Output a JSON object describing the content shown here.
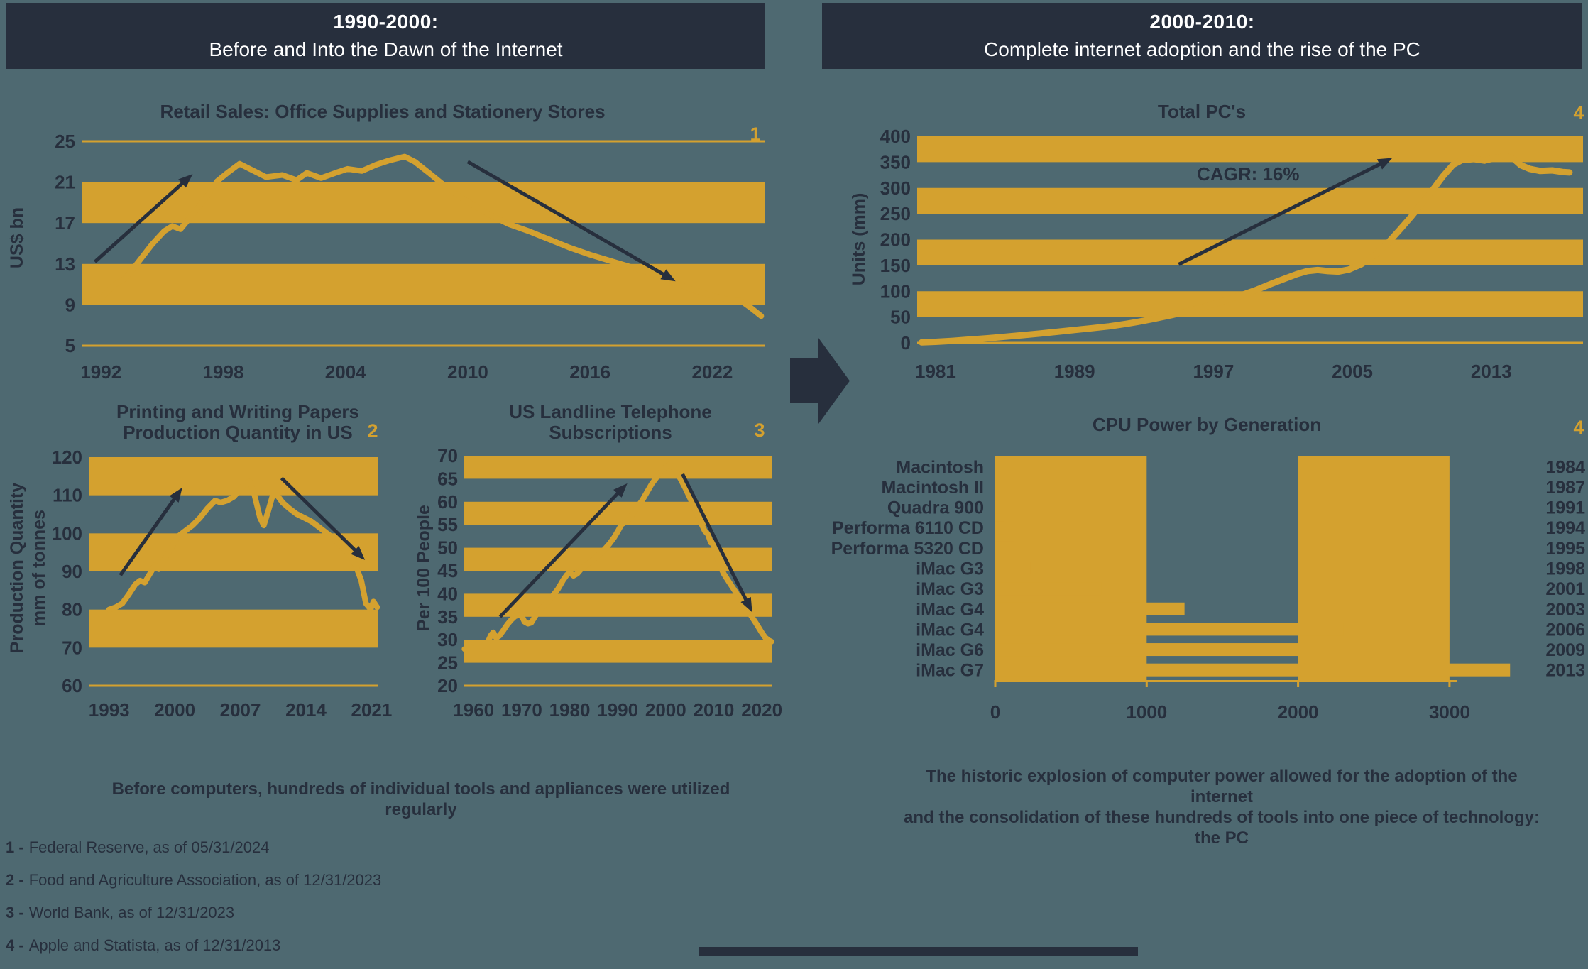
{
  "page": {
    "background": "#4e6971",
    "navy": "#272f3d",
    "gold": "#d4a12f",
    "white": "#ffffff"
  },
  "headers": {
    "left": {
      "era": "1990-2000:",
      "description": "Before and Into the Dawn of the Internet"
    },
    "right": {
      "era": "2000-2010:",
      "description": "Complete internet adoption and the rise of the PC"
    }
  },
  "captions": {
    "left": "Before computers, hundreds of individual tools and appliances were utilized regularly",
    "right_lines": [
      "The historic explosion of computer power allowed for the adoption of the internet",
      "and the consolidation of these hundreds of tools into one piece of technology: the PC"
    ]
  },
  "footnotes": [
    {
      "label": "1 -",
      "text": "Federal Reserve, as of 05/31/2024"
    },
    {
      "label": "2 -",
      "text": "Food and Agriculture Association, as of 12/31/2023"
    },
    {
      "label": "3 -",
      "text": "World Bank, as of 12/31/2023"
    },
    {
      "label": "4 -",
      "text": "Apple and Statista, as of 12/31/2013"
    }
  ],
  "chart_data": {
    "retail_sales": {
      "type": "line",
      "ref": "1",
      "title": "Retail Sales: Office Supplies and Stationery Stores",
      "ylabel": "US$ bn",
      "y_ticks": [
        25,
        21,
        17,
        13,
        9,
        5
      ],
      "x_ticks": [
        1992,
        1998,
        2004,
        2010,
        2016,
        2022
      ],
      "y_range": [
        5,
        25
      ],
      "x_range": [
        1991.05,
        2024.6
      ],
      "bands": [
        [
          17,
          21
        ],
        [
          9,
          13
        ]
      ],
      "edge_lines": [
        25,
        5
      ],
      "series": [
        [
          1991.2,
          9.3
        ],
        [
          1992,
          9.6
        ],
        [
          1992.6,
          10.9
        ],
        [
          1993.2,
          11.6
        ],
        [
          1993.8,
          13.1
        ],
        [
          1994.5,
          14.9
        ],
        [
          1995.1,
          16.2
        ],
        [
          1995.5,
          16.7
        ],
        [
          1995.9,
          16.4
        ],
        [
          1996.6,
          18.1
        ],
        [
          1997.2,
          19.6
        ],
        [
          1997.7,
          21.1
        ],
        [
          1998.2,
          21.9
        ],
        [
          1998.8,
          22.8
        ],
        [
          1999.4,
          22.2
        ],
        [
          2000.1,
          21.5
        ],
        [
          2000.9,
          21.7
        ],
        [
          2001.6,
          21.2
        ],
        [
          2002.1,
          21.9
        ],
        [
          2002.8,
          21.4
        ],
        [
          2003.5,
          21.9
        ],
        [
          2004.1,
          22.3
        ],
        [
          2004.8,
          22.1
        ],
        [
          2005.5,
          22.7
        ],
        [
          2006.1,
          23.1
        ],
        [
          2006.9,
          23.5
        ],
        [
          2007.4,
          23
        ],
        [
          2008.1,
          21.9
        ],
        [
          2008.9,
          20.6
        ],
        [
          2009.6,
          19.6
        ],
        [
          2010.4,
          18.6
        ],
        [
          2011.1,
          17.8
        ],
        [
          2012,
          16.9
        ],
        [
          2013,
          16.2
        ],
        [
          2014,
          15.4
        ],
        [
          2015,
          14.6
        ],
        [
          2016,
          13.9
        ],
        [
          2017,
          13.3
        ],
        [
          2018,
          12.7
        ],
        [
          2019,
          12.1
        ],
        [
          2020,
          11.3
        ],
        [
          2021,
          10.5
        ],
        [
          2022,
          9.9
        ],
        [
          2022.8,
          9.5
        ],
        [
          2023.4,
          9.4
        ],
        [
          2023.9,
          8.7
        ],
        [
          2024.4,
          7.9
        ]
      ],
      "arrows": [
        [
          1991.7,
          13.2,
          1996.5,
          21.8
        ],
        [
          2010,
          23,
          2020.2,
          11.3
        ]
      ]
    },
    "paper_production": {
      "type": "line",
      "ref": "2",
      "title_lines": [
        "Printing and Writing Papers",
        "Production Quantity in US"
      ],
      "ylabel_lines": [
        "Production Quantity",
        "mm of tonnes"
      ],
      "y_ticks": [
        120,
        110,
        100,
        90,
        80,
        70,
        60
      ],
      "x_ticks": [
        1993,
        2000,
        2007,
        2014,
        2021
      ],
      "y_range": [
        60,
        120
      ],
      "x_range": [
        1990.9,
        2021.65
      ],
      "bands": [
        [
          110,
          120
        ],
        [
          90,
          100
        ],
        [
          70,
          80
        ]
      ],
      "edge_lines": [
        60
      ],
      "series": [
        [
          1993,
          80
        ],
        [
          1993.7,
          80.6
        ],
        [
          1994.4,
          81.6
        ],
        [
          1995.1,
          84
        ],
        [
          1995.8,
          86.6
        ],
        [
          1996.3,
          87.6
        ],
        [
          1996.8,
          87.1
        ],
        [
          1997.4,
          89.6
        ],
        [
          1997.9,
          91.6
        ],
        [
          1998.3,
          90.6
        ],
        [
          1998.9,
          93.1
        ],
        [
          1999.6,
          96.1
        ],
        [
          2000.3,
          99.1
        ],
        [
          2001.1,
          100.6
        ],
        [
          2001.9,
          102.1
        ],
        [
          2002.7,
          104.1
        ],
        [
          2003.5,
          106.6
        ],
        [
          2004.3,
          108.6
        ],
        [
          2004.9,
          108.1
        ],
        [
          2005.6,
          108.6
        ],
        [
          2006.3,
          109.6
        ],
        [
          2007,
          111.6
        ],
        [
          2007.5,
          113.1
        ],
        [
          2008,
          113.6
        ],
        [
          2008.5,
          110.1
        ],
        [
          2009.1,
          104.1
        ],
        [
          2009.5,
          102.1
        ],
        [
          2010,
          106.1
        ],
        [
          2010.4,
          109.6
        ],
        [
          2010.9,
          110.1
        ],
        [
          2011.5,
          108.1
        ],
        [
          2012.2,
          106.6
        ],
        [
          2013,
          105.1
        ],
        [
          2013.8,
          104.1
        ],
        [
          2014.6,
          103.1
        ],
        [
          2015.4,
          101.6
        ],
        [
          2016.2,
          100.1
        ],
        [
          2017,
          98.6
        ],
        [
          2017.8,
          96.6
        ],
        [
          2018.6,
          94.6
        ],
        [
          2019.3,
          91.6
        ],
        [
          2019.9,
          87.6
        ],
        [
          2020.4,
          81.6
        ],
        [
          2020.9,
          80.1
        ],
        [
          2021.2,
          82.1
        ],
        [
          2021.6,
          80.6
        ]
      ],
      "arrows": [
        [
          1994.2,
          89,
          2000.8,
          112
        ],
        [
          2011.4,
          114.5,
          2020.3,
          93
        ]
      ]
    },
    "landline": {
      "type": "line",
      "ref": "3",
      "title_lines": [
        "US Landline Telephone",
        "Subscriptions"
      ],
      "ylabel": "Per 100 People",
      "y_ticks": [
        70,
        65,
        60,
        55,
        50,
        45,
        40,
        35,
        30,
        25,
        20
      ],
      "x_ticks": [
        1960,
        1970,
        1980,
        1990,
        2000,
        2010,
        2020
      ],
      "y_range": [
        20,
        70
      ],
      "x_range": [
        1957.9,
        2022.05
      ],
      "bands": [
        [
          65,
          70
        ],
        [
          55,
          60
        ],
        [
          45,
          50
        ],
        [
          35,
          40
        ],
        [
          25,
          30
        ]
      ],
      "edge_lines": [
        20
      ],
      "series": [
        [
          1958.1,
          28
        ],
        [
          1959,
          27.9
        ],
        [
          1960,
          28.1
        ],
        [
          1960.8,
          27.9
        ],
        [
          1961.5,
          28.4
        ],
        [
          1962.3,
          28.9
        ],
        [
          1963,
          29.6
        ],
        [
          1963.6,
          31
        ],
        [
          1964.1,
          31.6
        ],
        [
          1964.7,
          30.4
        ],
        [
          1965.4,
          30.9
        ],
        [
          1966.1,
          31.9
        ],
        [
          1967,
          33.3
        ],
        [
          1967.8,
          34.3
        ],
        [
          1968.6,
          35.1
        ],
        [
          1969.4,
          35.4
        ],
        [
          1970.1,
          35
        ],
        [
          1970.6,
          33.9
        ],
        [
          1971.3,
          33.5
        ],
        [
          1972,
          33.7
        ],
        [
          1972.7,
          34.9
        ],
        [
          1973.4,
          36.1
        ],
        [
          1974.3,
          37.1
        ],
        [
          1975.4,
          38.1
        ],
        [
          1976.5,
          39.6
        ],
        [
          1977.6,
          41.1
        ],
        [
          1978.6,
          42.9
        ],
        [
          1979.4,
          44.1
        ],
        [
          1980.1,
          44.6
        ],
        [
          1980.8,
          43.9
        ],
        [
          1981.6,
          44.4
        ],
        [
          1982.4,
          45.4
        ],
        [
          1983.3,
          46.1
        ],
        [
          1984.3,
          46.9
        ],
        [
          1985.3,
          47.7
        ],
        [
          1986.3,
          48.7
        ],
        [
          1987.3,
          49.7
        ],
        [
          1988.3,
          50.9
        ],
        [
          1989.3,
          52.3
        ],
        [
          1990.1,
          53.7
        ],
        [
          1990.8,
          55.1
        ],
        [
          1991.5,
          55.5
        ],
        [
          1992.3,
          56.1
        ],
        [
          1993.1,
          57.3
        ],
        [
          1994.1,
          58.9
        ],
        [
          1995.1,
          60.3
        ],
        [
          1996.1,
          62.1
        ],
        [
          1997.1,
          63.9
        ],
        [
          1998.1,
          65.3
        ],
        [
          1999.1,
          66.7
        ],
        [
          2000.1,
          67.7
        ],
        [
          2000.8,
          68.1
        ],
        [
          2001.5,
          67.5
        ],
        [
          2002.3,
          66.3
        ],
        [
          2003.1,
          64.9
        ],
        [
          2004.1,
          62.9
        ],
        [
          2005.1,
          60.7
        ],
        [
          2006.1,
          58.3
        ],
        [
          2007.1,
          55.9
        ],
        [
          2008.1,
          53.7
        ],
        [
          2008.8,
          52.9
        ],
        [
          2009.4,
          51.1
        ],
        [
          2009.8,
          51.3
        ],
        [
          2010.4,
          48.9
        ],
        [
          2011.1,
          46.5
        ],
        [
          2012.1,
          44.3
        ],
        [
          2013.1,
          42.7
        ],
        [
          2014.1,
          41.1
        ],
        [
          2015.1,
          39.5
        ],
        [
          2016.1,
          37.9
        ],
        [
          2017.1,
          36.3
        ],
        [
          2018.1,
          34.7
        ],
        [
          2019.1,
          33.1
        ],
        [
          2019.9,
          31.7
        ],
        [
          2020.7,
          30.5
        ],
        [
          2021.4,
          29.9
        ],
        [
          2022,
          29.6
        ]
      ],
      "arrows": [
        [
          1965.5,
          35,
          1992,
          64
        ],
        [
          2003.5,
          66,
          2018,
          36
        ]
      ]
    },
    "total_pcs": {
      "type": "line",
      "ref": "4",
      "title": "Total PC's",
      "ylabel": "Units (mm)",
      "y_ticks": [
        400,
        350,
        300,
        250,
        200,
        150,
        100,
        50,
        0
      ],
      "x_ticks": [
        1981,
        1989,
        1997,
        2005,
        2013
      ],
      "y_range": [
        0,
        400
      ],
      "x_range": [
        1979.94,
        2018.28
      ],
      "bands": [
        [
          350,
          400
        ],
        [
          250,
          300
        ],
        [
          150,
          200
        ],
        [
          50,
          100
        ]
      ],
      "edge_lines": [
        0
      ],
      "series": [
        [
          1980.2,
          1
        ],
        [
          1981,
          2
        ],
        [
          1982,
          4
        ],
        [
          1983,
          6.5
        ],
        [
          1984,
          9
        ],
        [
          1985,
          12
        ],
        [
          1986,
          15
        ],
        [
          1987,
          18
        ],
        [
          1988,
          21.5
        ],
        [
          1989,
          25
        ],
        [
          1990,
          28.5
        ],
        [
          1991,
          32
        ],
        [
          1992,
          37
        ],
        [
          1992.7,
          41
        ],
        [
          1993.5,
          46
        ],
        [
          1994.5,
          53
        ],
        [
          1995.5,
          61
        ],
        [
          1996.5,
          70
        ],
        [
          1997.5,
          80
        ],
        [
          1998.5,
          91
        ],
        [
          1999.5,
          103
        ],
        [
          2000.3,
          114
        ],
        [
          2001,
          123
        ],
        [
          2001.8,
          133
        ],
        [
          2002.4,
          139
        ],
        [
          2003,
          141
        ],
        [
          2003.6,
          139
        ],
        [
          2004.2,
          138
        ],
        [
          2004.8,
          142
        ],
        [
          2005.5,
          152
        ],
        [
          2006.3,
          170
        ],
        [
          2007,
          192
        ],
        [
          2007.7,
          218
        ],
        [
          2008.4,
          245
        ],
        [
          2009,
          270
        ],
        [
          2009.6,
          295
        ],
        [
          2010.2,
          322
        ],
        [
          2010.8,
          345
        ],
        [
          2011.3,
          354
        ],
        [
          2012,
          356
        ],
        [
          2012.6,
          353
        ],
        [
          2013.2,
          358
        ],
        [
          2013.8,
          362
        ],
        [
          2014.3,
          356
        ],
        [
          2014.7,
          344
        ],
        [
          2015.2,
          337
        ],
        [
          2015.8,
          333
        ],
        [
          2016.5,
          334
        ],
        [
          2017.1,
          331
        ],
        [
          2017.5,
          330
        ]
      ],
      "arrows": [
        [
          1995,
          152,
          2007.3,
          358
        ]
      ],
      "annotation": {
        "text": "CAGR: 16%",
        "x": 1999,
        "y": 327
      }
    },
    "cpu_power": {
      "type": "bar",
      "ref": "4",
      "title": "CPU Power by Generation",
      "rows": [
        {
          "model": "Macintosh",
          "year": "1984",
          "value": 8
        },
        {
          "model": "Macintosh II",
          "year": "1987",
          "value": 16
        },
        {
          "model": "Quadra 900",
          "year": "1991",
          "value": 25
        },
        {
          "model": "Performa 6110 CD",
          "year": "1994",
          "value": 60
        },
        {
          "model": "Performa 5320 CD",
          "year": "1995",
          "value": 120
        },
        {
          "model": "iMac G3",
          "year": "1998",
          "value": 233
        },
        {
          "model": "iMac G3",
          "year": "2001",
          "value": 700
        },
        {
          "model": "iMac G4",
          "year": "2003",
          "value": 1250
        },
        {
          "model": "iMac G4",
          "year": "2006",
          "value": 2300
        },
        {
          "model": "iMac G6",
          "year": "2009",
          "value": 2000
        },
        {
          "model": "iMac G7",
          "year": "2013",
          "value": 3400
        }
      ],
      "x_ticks": [
        0,
        1000,
        2000,
        3000
      ],
      "x_axis_max": 3050,
      "bands": [
        [
          0,
          1000
        ],
        [
          2000,
          3000
        ]
      ]
    }
  }
}
